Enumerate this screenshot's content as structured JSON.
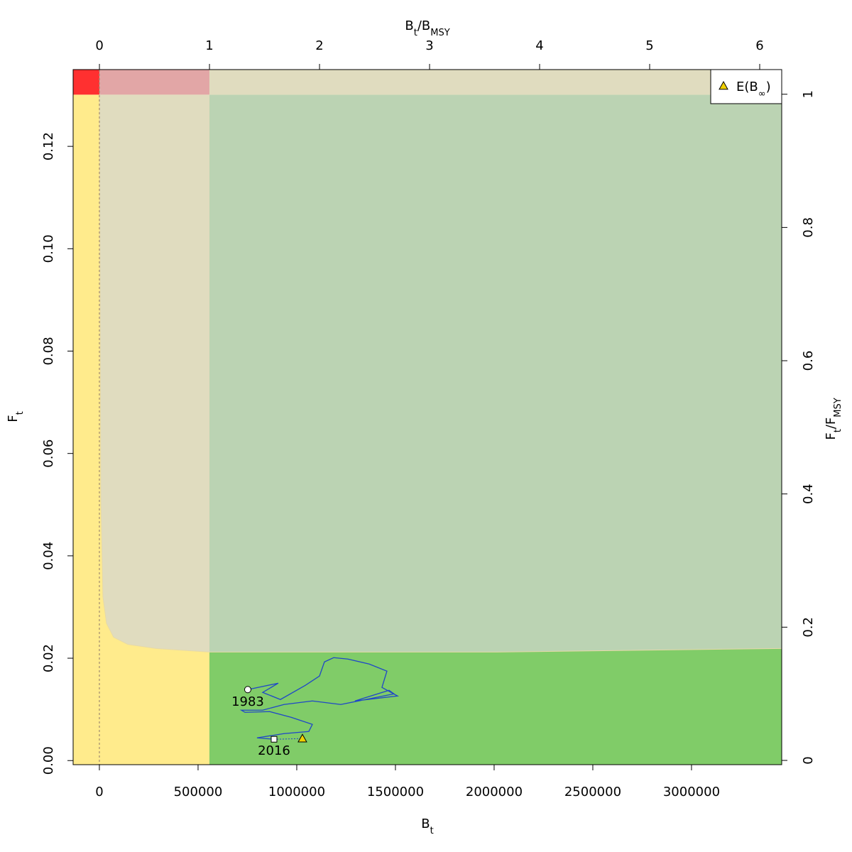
{
  "chart_data": {
    "type": "kobe",
    "x_label": [
      {
        "text": "B"
      },
      {
        "sub": "t"
      }
    ],
    "y_label": [
      {
        "text": "F"
      },
      {
        "sub": "t"
      }
    ],
    "x2_label": [
      {
        "text": "B"
      },
      {
        "sub": "t"
      },
      {
        "text": "/B"
      },
      {
        "sub": "MSY"
      }
    ],
    "y2_label": [
      {
        "text": "F"
      },
      {
        "sub": "t"
      },
      {
        "text": "/F"
      },
      {
        "sub": "MSY"
      }
    ],
    "xlim": [
      -133000,
      3457000
    ],
    "ylim": [
      -0.0008,
      0.135
    ],
    "xticks": [
      0,
      500000,
      1000000,
      1500000,
      2000000,
      2500000,
      3000000
    ],
    "yticks": [
      {
        "value": 0,
        "label": "0.00"
      },
      {
        "value": 0.02,
        "label": "0.02"
      },
      {
        "value": 0.04,
        "label": "0.04"
      },
      {
        "value": 0.06,
        "label": "0.06"
      },
      {
        "value": 0.08,
        "label": "0.08"
      },
      {
        "value": 0.1,
        "label": "0.10"
      },
      {
        "value": 0.12,
        "label": "0.12"
      }
    ],
    "x2lim": [
      -0.239,
      6.2
    ],
    "x2ticks": [
      0,
      1,
      2,
      3,
      4,
      5,
      6
    ],
    "y2lim": [
      -0.0064,
      1.037
    ],
    "y2ticks": [
      0,
      0.2,
      0.4,
      0.6,
      0.8,
      1
    ],
    "B_msy": 557554,
    "F_msy": 0.1301,
    "zone_boundary": {
      "x": [
        0,
        7200,
        18000,
        36000,
        71900,
        143900,
        287800,
        557554,
        2014300,
        3456700
      ],
      "y": [
        0.13,
        0.0515,
        0.032,
        0.0268,
        0.0241,
        0.0227,
        0.0219,
        0.0212,
        0.0212,
        0.0219
      ]
    },
    "zone_colors": {
      "red": "#ff3030",
      "pink": "#e2a6a6",
      "tan": "#e0dcbf",
      "yellow": "#ffeb8c",
      "light_green": "#bbd3b3",
      "green": "#80cc68"
    },
    "trajectory": {
      "color": "#1f47c8",
      "start_label": "1983",
      "end_label": "2016",
      "x": [
        751800,
        906400,
        827300,
        917200,
        1043100,
        1115100,
        1140200,
        1187000,
        1259000,
        1366900,
        1456800,
        1431600,
        1510700,
        1294900,
        1467600,
        1492800,
        1223000,
        1079100,
        935200,
        827300,
        719400,
        737400,
        863300,
        971200,
        1025100,
        1079100,
        1061100,
        935200,
        798500,
        884900
      ],
      "y": [
        0.01387,
        0.01512,
        0.01332,
        0.01193,
        0.0147,
        0.01651,
        0.01928,
        0.02011,
        0.01983,
        0.01886,
        0.01748,
        0.01429,
        0.01262,
        0.01165,
        0.01373,
        0.01304,
        0.01096,
        0.01165,
        0.01096,
        0.00985,
        0.00985,
        0.00943,
        0.00957,
        0.00846,
        0.00777,
        0.00707,
        0.00569,
        0.00527,
        0.00444,
        0.00416
      ]
    },
    "equilibrium": {
      "name": [
        {
          "text": "E(B"
        },
        {
          "sub": "∞"
        },
        {
          "text": ")"
        }
      ],
      "x": 1028700,
      "y": 0.0043,
      "color": "#f0d000"
    },
    "legend": "top-right"
  }
}
